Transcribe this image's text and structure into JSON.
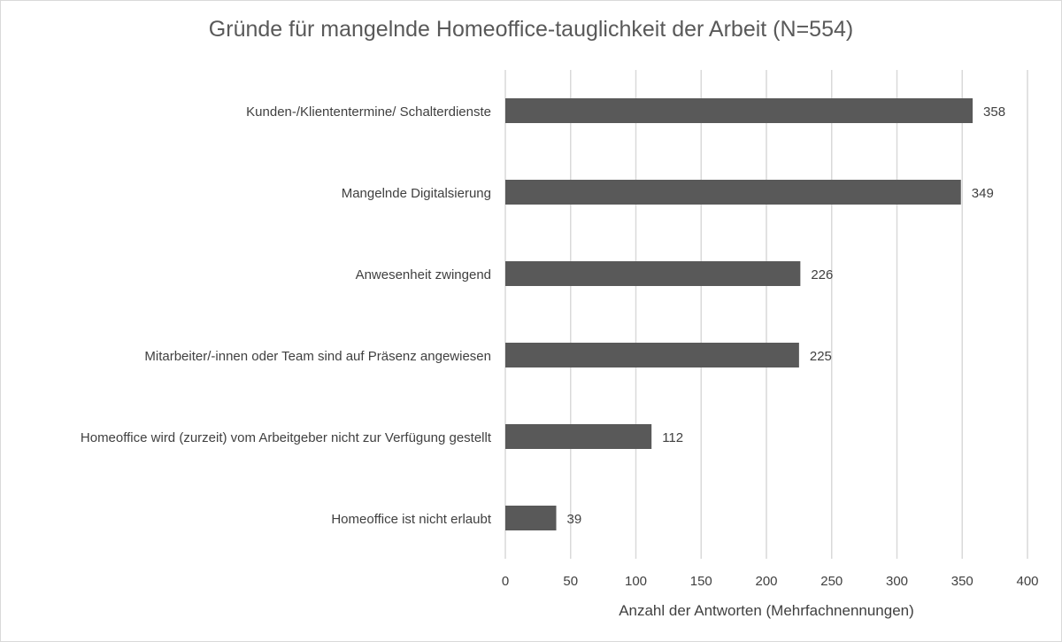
{
  "chart_data": {
    "type": "bar",
    "orientation": "horizontal",
    "title": "Gründe für mangelnde Homeoffice-tauglichkeit der Arbeit (N=554)",
    "xlabel": "Anzahl der Antworten (Mehrfachnennungen)",
    "ylabel": "",
    "categories": [
      "Kunden-/Klienten­termine/ Schalterdienste",
      "Mangelnde Digitalsierung",
      "Anwesenheit zwingend",
      "Mitarbeiter/-innen oder Team sind auf Präsenz angewiesen",
      "Homeoffice wird (zurzeit) vom Arbeitgeber nicht zur Verfügung gestellt",
      "Homeoffice ist nicht erlaubt"
    ],
    "values": [
      358,
      349,
      226,
      225,
      112,
      39
    ],
    "xlim": [
      0,
      400
    ],
    "xticks": [
      0,
      50,
      100,
      150,
      200,
      250,
      300,
      350,
      400
    ],
    "grid": true,
    "bar_color": "#595959",
    "grid_color": "#d9d9d9"
  }
}
